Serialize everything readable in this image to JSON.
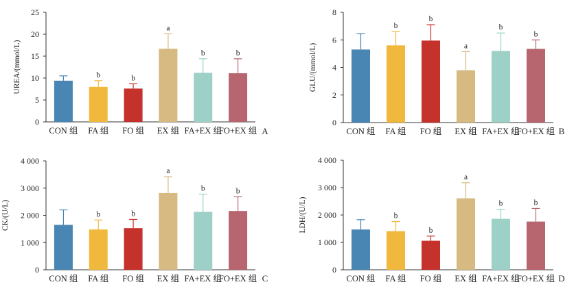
{
  "chart_data": [
    {
      "type": "bar",
      "panel_letter": "A",
      "ylabel": "UREA/(mmol/L)",
      "ylim": [
        0,
        25
      ],
      "yticks": [
        "0",
        "5",
        "10",
        "15",
        "20",
        "25"
      ],
      "yticks_values": [
        0,
        5,
        10,
        15,
        20,
        25
      ],
      "categories": [
        "CON 组",
        "FA 组",
        "FO 组",
        "EX 组",
        "FA+EX 组",
        "FO+EX 组"
      ],
      "values": [
        9.4,
        8.0,
        7.6,
        16.7,
        11.2,
        11.1
      ],
      "errors": [
        1.1,
        1.4,
        1.1,
        3.4,
        3.2,
        3.3
      ],
      "significance": [
        "",
        "b",
        "b",
        "a",
        "b",
        "b"
      ],
      "grid": false
    },
    {
      "type": "bar",
      "panel_letter": "B",
      "ylabel": "GLU/(mmol/L)",
      "ylim": [
        0,
        8
      ],
      "yticks": [
        "0",
        "2",
        "4",
        "6",
        "8"
      ],
      "yticks_values": [
        0,
        2,
        4,
        6,
        8
      ],
      "categories": [
        "CON 组",
        "FA 组",
        "FO 组",
        "EX 组",
        "FA+EX 组",
        "FO+EX 组"
      ],
      "values": [
        5.3,
        5.6,
        5.95,
        3.8,
        5.2,
        5.35
      ],
      "errors": [
        1.15,
        1.0,
        1.15,
        1.35,
        1.3,
        0.65
      ],
      "significance": [
        "",
        "b",
        "b",
        "a",
        "b",
        "b"
      ],
      "grid": false
    },
    {
      "type": "bar",
      "panel_letter": "C",
      "ylabel": "CK/(U/L)",
      "ylim": [
        0,
        4000
      ],
      "yticks": [
        "0",
        "1 000",
        "2 000",
        "3 000",
        "4 000"
      ],
      "yticks_values": [
        0,
        1000,
        2000,
        3000,
        4000
      ],
      "categories": [
        "CON 组",
        "FA 组",
        "FO 组",
        "EX 组",
        "FA+EX 组",
        "FO+EX 组"
      ],
      "values": [
        1650,
        1480,
        1530,
        2820,
        2130,
        2160
      ],
      "errors": [
        550,
        350,
        320,
        600,
        650,
        520
      ],
      "significance": [
        "",
        "b",
        "b",
        "a",
        "b",
        "b"
      ],
      "grid": false
    },
    {
      "type": "bar",
      "panel_letter": "D",
      "ylabel": "LDH/(U/L)",
      "ylim": [
        0,
        4000
      ],
      "yticks": [
        "0",
        "1 000",
        "2 000",
        "3 000",
        "4 000"
      ],
      "yticks_values": [
        0,
        1000,
        2000,
        3000,
        4000
      ],
      "categories": [
        "CON 组",
        "FA 组",
        "FO 组",
        "EX 组",
        "FA+EX 组",
        "FO+EX 组"
      ],
      "values": [
        1470,
        1410,
        1060,
        2610,
        1860,
        1760
      ],
      "errors": [
        360,
        350,
        170,
        570,
        350,
        480
      ],
      "significance": [
        "",
        "b",
        "b",
        "a",
        "b",
        "b"
      ],
      "grid": false
    }
  ],
  "colors": {
    "bars": [
      "#4a86b4",
      "#f0b93e",
      "#c5312b",
      "#d7ba82",
      "#9dd0c6",
      "#b7666f"
    ],
    "axis": "#333333",
    "text": "#222222"
  }
}
